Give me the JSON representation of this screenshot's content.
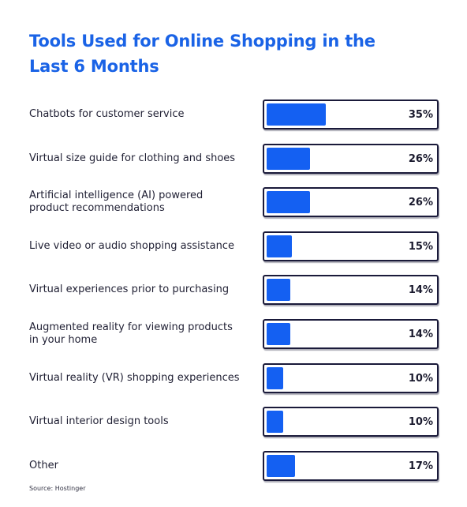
{
  "title": "Tools Used for Online Shopping in the Last 6 Months",
  "source": "Source: Hostinger",
  "colors": {
    "title": "#1a63e6",
    "bar_fill": "#1460f2",
    "bar_border": "#1a1a3a",
    "text": "#1f1f33"
  },
  "chart_data": {
    "type": "bar",
    "orientation": "horizontal",
    "title": "Tools Used for Online Shopping in the Last 6 Months",
    "categories": [
      "Chatbots for customer service",
      "Virtual size guide for clothing and shoes",
      "Artificial intelligence (AI) powered product recommendations",
      "Live video or audio shopping assistance",
      "Virtual experiences prior to purchasing",
      "Augmented reality for viewing products in your home",
      "Virtual reality (VR) shopping experiences",
      "Virtual interior design tools",
      "Other"
    ],
    "values": [
      35,
      26,
      26,
      15,
      14,
      14,
      10,
      10,
      17
    ],
    "value_labels": [
      "35%",
      "26%",
      "26%",
      "15%",
      "14%",
      "14%",
      "10%",
      "10%",
      "17%"
    ],
    "xlabel": "",
    "ylabel": "",
    "xlim": [
      0,
      100
    ],
    "unit": "%",
    "grid": false,
    "legend": "none"
  }
}
